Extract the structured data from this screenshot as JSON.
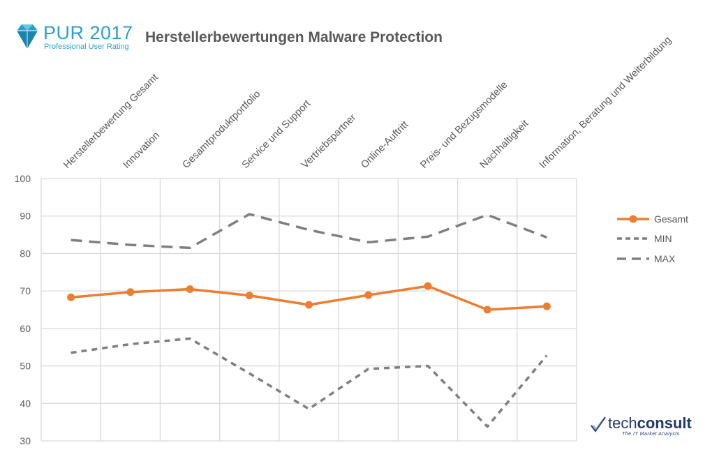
{
  "brand": {
    "name": "PUR 2017",
    "subtitle": "Professional User Rating",
    "color": "#2aa0c8"
  },
  "logo_right": {
    "name_light": "tech",
    "name_bold": "consult",
    "tagline": "The IT Market Analysts",
    "color": "#1f3a6b"
  },
  "chart_data": {
    "type": "line",
    "title": "Herstellerbewertungen Malware Protection",
    "categories": [
      "Herstellerbewertung Gesamt",
      "Innovation",
      "Gesamtproduktportfolio",
      "Service und Support",
      "Vertriebspartner",
      "Online-Auftritt",
      "Preis- und Bezugsmodelle",
      "Nachhaltigkeit",
      "Information, Beratung und Weiterbildung"
    ],
    "ylim": [
      30,
      100
    ],
    "yticks": [
      30,
      40,
      50,
      60,
      70,
      80,
      90,
      100
    ],
    "grid": true,
    "legend_position": "right",
    "series": [
      {
        "name": "Gesamt",
        "color": "#ed7d31",
        "style": "solid-markers",
        "values": [
          68.3,
          69.7,
          70.5,
          68.8,
          66.3,
          68.9,
          71.3,
          65.0,
          65.9
        ]
      },
      {
        "name": "MIN",
        "color": "#7f7f7f",
        "style": "short-dash",
        "values": [
          53.5,
          55.8,
          57.3,
          48.0,
          38.5,
          49.2,
          50.0,
          33.8,
          52.8
        ]
      },
      {
        "name": "MAX",
        "color": "#7f7f7f",
        "style": "long-dash",
        "values": [
          83.6,
          82.3,
          81.5,
          90.5,
          86.3,
          83.0,
          84.5,
          90.3,
          84.3
        ]
      }
    ]
  }
}
